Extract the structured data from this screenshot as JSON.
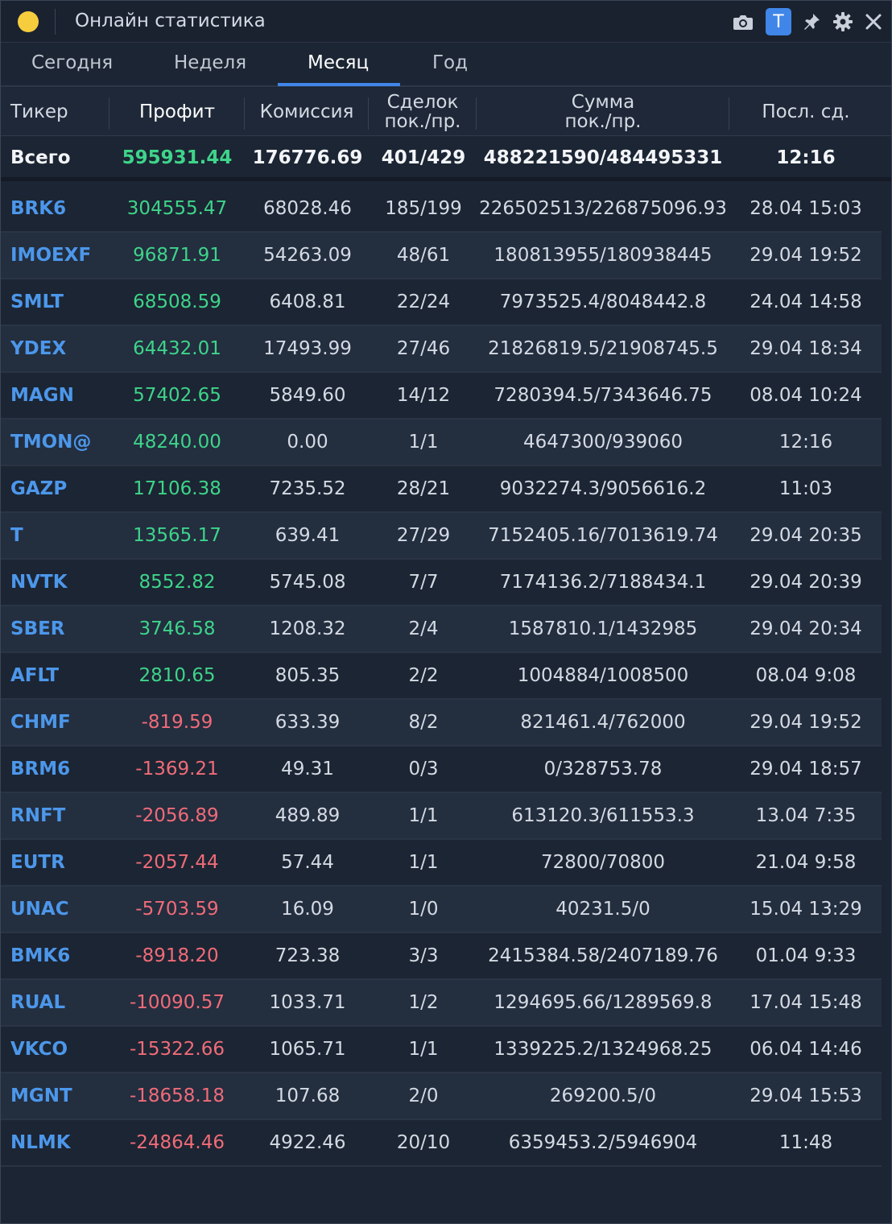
{
  "titlebar": {
    "title": "Онлайн статистика",
    "badge": "T",
    "icons": [
      "camera-icon",
      "pin-icon",
      "gear-icon",
      "close-icon"
    ]
  },
  "tabs": [
    {
      "label": "Сегодня",
      "active": false
    },
    {
      "label": "Неделя",
      "active": false
    },
    {
      "label": "Месяц",
      "active": true
    },
    {
      "label": "Год",
      "active": false
    }
  ],
  "headers": {
    "ticker": "Тикер",
    "profit": "Профит",
    "commission": "Комиссия",
    "deals_1": "Сделок",
    "deals_2": "пок./пр.",
    "sum_1": "Сумма",
    "sum_2": "пок./пр.",
    "last": "Посл. сд."
  },
  "total": {
    "label": "Всего",
    "profit": "595931.44",
    "commission": "176776.69",
    "deals": "401/429",
    "sum": "488221590/484495331",
    "last": "12:16"
  },
  "rows": [
    {
      "ticker": "BRK6",
      "profit": "304555.47",
      "commission": "68028.46",
      "deals": "185/199",
      "sum": "226502513/226875096.93",
      "last": "28.04 15:03",
      "positive": true
    },
    {
      "ticker": "IMOEXF",
      "profit": "96871.91",
      "commission": "54263.09",
      "deals": "48/61",
      "sum": "180813955/180938445",
      "last": "29.04 19:52",
      "positive": true
    },
    {
      "ticker": "SMLT",
      "profit": "68508.59",
      "commission": "6408.81",
      "deals": "22/24",
      "sum": "7973525.4/8048442.8",
      "last": "24.04 14:58",
      "positive": true
    },
    {
      "ticker": "YDEX",
      "profit": "64432.01",
      "commission": "17493.99",
      "deals": "27/46",
      "sum": "21826819.5/21908745.5",
      "last": "29.04 18:34",
      "positive": true
    },
    {
      "ticker": "MAGN",
      "profit": "57402.65",
      "commission": "5849.60",
      "deals": "14/12",
      "sum": "7280394.5/7343646.75",
      "last": "08.04 10:24",
      "positive": true
    },
    {
      "ticker": "TMON@",
      "profit": "48240.00",
      "commission": "0.00",
      "deals": "1/1",
      "sum": "4647300/939060",
      "last": "12:16",
      "positive": true
    },
    {
      "ticker": "GAZP",
      "profit": "17106.38",
      "commission": "7235.52",
      "deals": "28/21",
      "sum": "9032274.3/9056616.2",
      "last": "11:03",
      "positive": true
    },
    {
      "ticker": "T",
      "profit": "13565.17",
      "commission": "639.41",
      "deals": "27/29",
      "sum": "7152405.16/7013619.74",
      "last": "29.04 20:35",
      "positive": true
    },
    {
      "ticker": "NVTK",
      "profit": "8552.82",
      "commission": "5745.08",
      "deals": "7/7",
      "sum": "7174136.2/7188434.1",
      "last": "29.04 20:39",
      "positive": true
    },
    {
      "ticker": "SBER",
      "profit": "3746.58",
      "commission": "1208.32",
      "deals": "2/4",
      "sum": "1587810.1/1432985",
      "last": "29.04 20:34",
      "positive": true
    },
    {
      "ticker": "AFLT",
      "profit": "2810.65",
      "commission": "805.35",
      "deals": "2/2",
      "sum": "1004884/1008500",
      "last": "08.04 9:08",
      "positive": true
    },
    {
      "ticker": "CHMF",
      "profit": "-819.59",
      "commission": "633.39",
      "deals": "8/2",
      "sum": "821461.4/762000",
      "last": "29.04 19:52",
      "positive": false
    },
    {
      "ticker": "BRM6",
      "profit": "-1369.21",
      "commission": "49.31",
      "deals": "0/3",
      "sum": "0/328753.78",
      "last": "29.04 18:57",
      "positive": false
    },
    {
      "ticker": "RNFT",
      "profit": "-2056.89",
      "commission": "489.89",
      "deals": "1/1",
      "sum": "613120.3/611553.3",
      "last": "13.04 7:35",
      "positive": false
    },
    {
      "ticker": "EUTR",
      "profit": "-2057.44",
      "commission": "57.44",
      "deals": "1/1",
      "sum": "72800/70800",
      "last": "21.04 9:58",
      "positive": false
    },
    {
      "ticker": "UNAC",
      "profit": "-5703.59",
      "commission": "16.09",
      "deals": "1/0",
      "sum": "40231.5/0",
      "last": "15.04 13:29",
      "positive": false
    },
    {
      "ticker": "BMK6",
      "profit": "-8918.20",
      "commission": "723.38",
      "deals": "3/3",
      "sum": "2415384.58/2407189.76",
      "last": "01.04 9:33",
      "positive": false
    },
    {
      "ticker": "RUAL",
      "profit": "-10090.57",
      "commission": "1033.71",
      "deals": "1/2",
      "sum": "1294695.66/1289569.8",
      "last": "17.04 15:48",
      "positive": false
    },
    {
      "ticker": "VKCO",
      "profit": "-15322.66",
      "commission": "1065.71",
      "deals": "1/1",
      "sum": "1339225.2/1324968.25",
      "last": "06.04 14:46",
      "positive": false
    },
    {
      "ticker": "MGNT",
      "profit": "-18658.18",
      "commission": "107.68",
      "deals": "2/0",
      "sum": "269200.5/0",
      "last": "29.04 15:53",
      "positive": false
    },
    {
      "ticker": "NLMK",
      "profit": "-24864.46",
      "commission": "4922.46",
      "deals": "20/10",
      "sum": "6359453.2/5946904",
      "last": "11:48",
      "positive": false
    }
  ],
  "colors": {
    "positive": "#3ed48a",
    "negative": "#f06b78",
    "ticker": "#4c97ea",
    "accent": "#3f86e8"
  }
}
